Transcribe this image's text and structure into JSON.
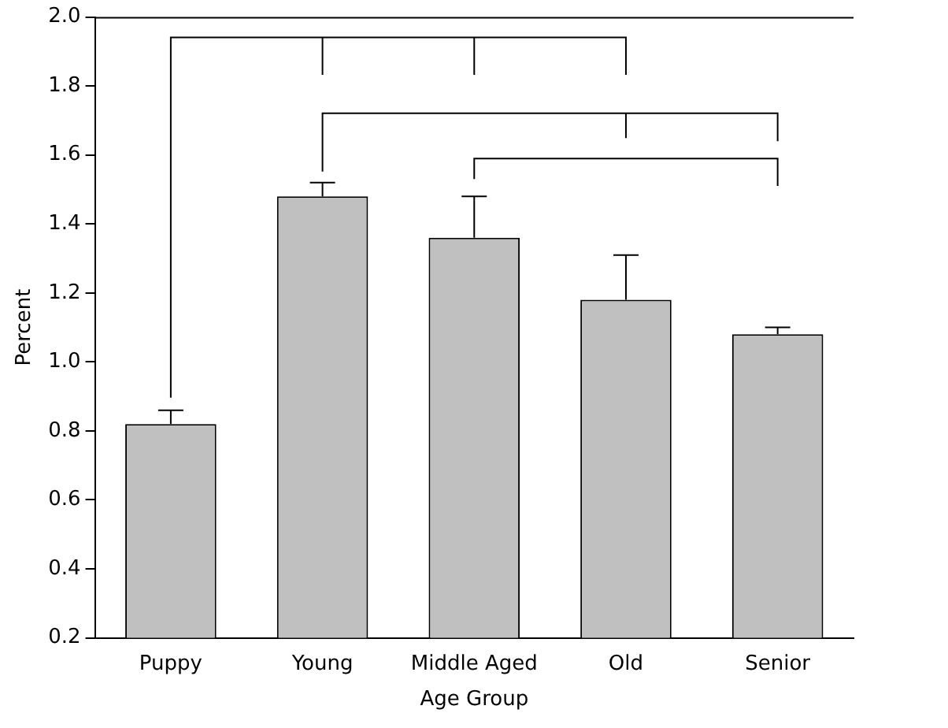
{
  "chart_data": {
    "type": "bar",
    "xlabel": "Age Group",
    "ylabel": "Percent",
    "categories": [
      "Puppy",
      "Young",
      "Middle Aged",
      "Old",
      "Senior"
    ],
    "values": [
      0.82,
      1.48,
      1.36,
      1.18,
      1.08
    ],
    "errors": [
      [
        0.82,
        0.86
      ],
      [
        1.48,
        1.52
      ],
      [
        1.36,
        1.48
      ],
      [
        1.18,
        1.31
      ],
      [
        1.08,
        1.1
      ]
    ],
    "color": "#c0c0c0",
    "ylim": [
      0.2,
      2.0
    ],
    "yticks": [
      0.2,
      0.4,
      0.6,
      0.8,
      {
        "value": 1,
        "label": "1.0"
      },
      1.2,
      1.4,
      1.6,
      1.8,
      {
        "value": 2,
        "label": "2.0"
      }
    ],
    "grid": false,
    "legend": false
  }
}
